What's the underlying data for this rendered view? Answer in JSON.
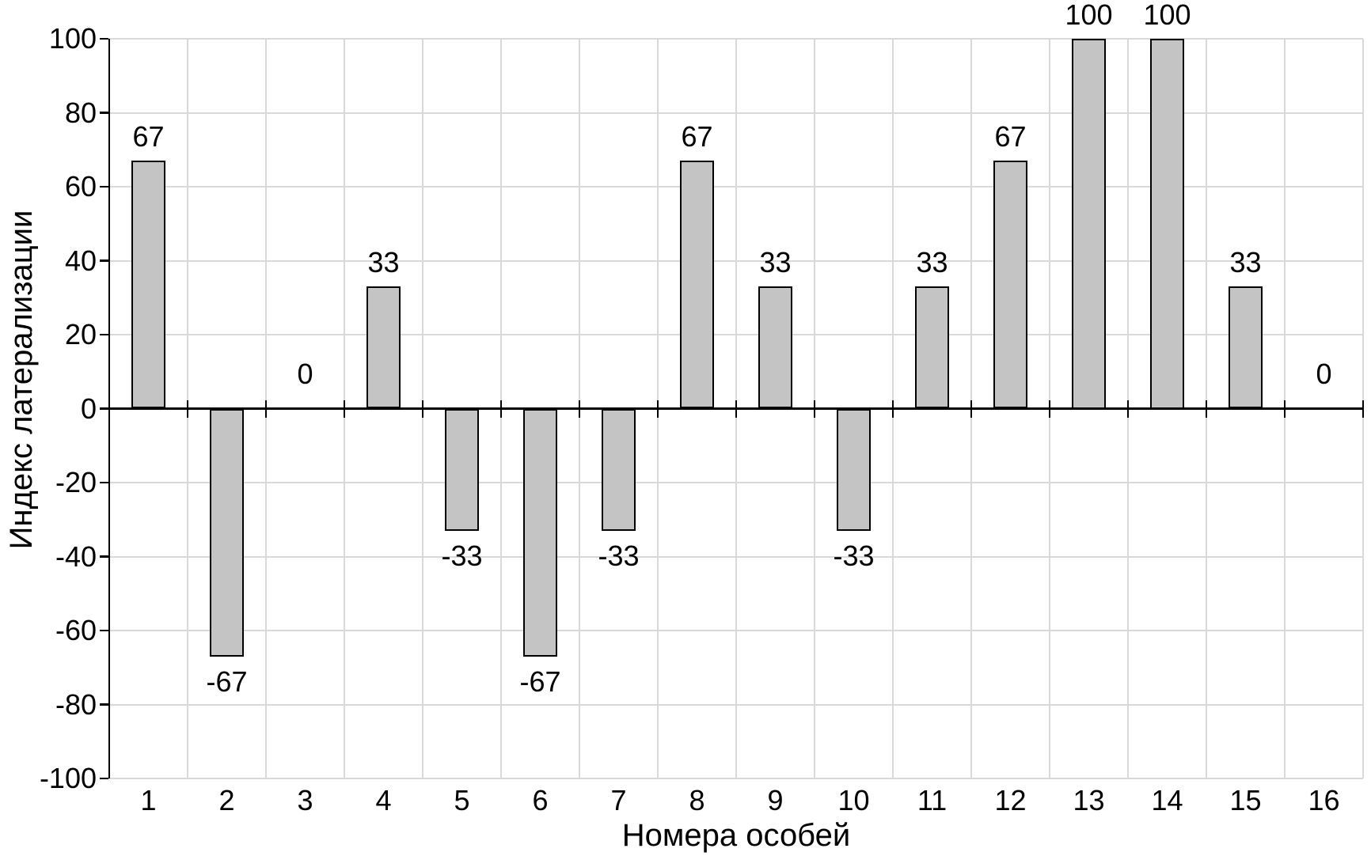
{
  "chart_data": {
    "type": "bar",
    "title": "",
    "xlabel": "Номера особей",
    "ylabel": "Индекс латерализации",
    "categories": [
      "1",
      "2",
      "3",
      "4",
      "5",
      "6",
      "7",
      "8",
      "9",
      "10",
      "11",
      "12",
      "13",
      "14",
      "15",
      "16"
    ],
    "values": [
      67,
      -67,
      0,
      33,
      -33,
      -67,
      -33,
      67,
      33,
      -33,
      33,
      67,
      100,
      100,
      33,
      0
    ],
    "data_labels": [
      "67",
      "-67",
      "0",
      "33",
      "-33",
      "-67",
      "-33",
      "67",
      "33",
      "-33",
      "33",
      "67",
      "100",
      "100",
      "33",
      "0"
    ],
    "ylim": [
      -100,
      100
    ],
    "y_ticks": [
      100,
      80,
      60,
      40,
      20,
      0,
      -20,
      -40,
      -60,
      -80,
      -100
    ],
    "grid": true,
    "legend": "none",
    "colors": {
      "bar_fill": "#c4c4c4",
      "bar_border": "#000000",
      "gridline": "#d9d9d9",
      "axis": "#000000",
      "text": "#000000",
      "background": "#ffffff"
    }
  }
}
